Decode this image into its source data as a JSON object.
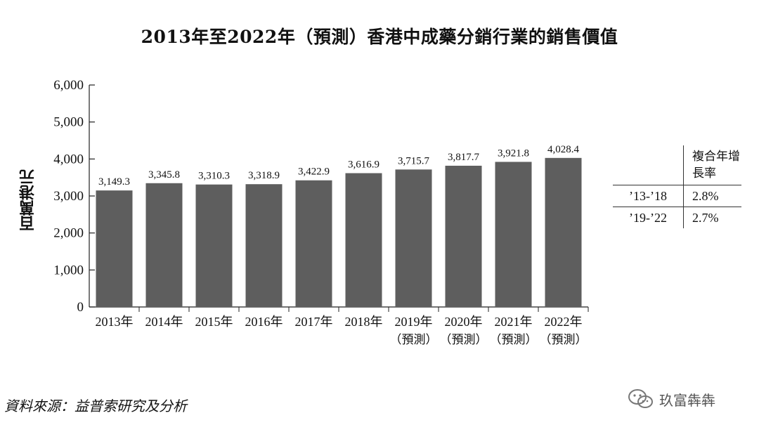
{
  "title": "2013年至2022年（預測）香港中成藥分銷行業的銷售價值",
  "source": "資料來源：益普索研究及分析",
  "watermark": "玖富犇犇",
  "cagr_table": {
    "header": "複合年增長率",
    "rows": [
      {
        "period": "’13-’18",
        "value": "2.8%"
      },
      {
        "period": "’19-’22",
        "value": "2.7%"
      }
    ]
  },
  "chart_data": {
    "type": "bar",
    "title": "2013年至2022年（預測）香港中成藥分銷行業的銷售價值",
    "ylabel": "百萬港元",
    "xlabel": "",
    "ylim": [
      0,
      6000
    ],
    "yticks": [
      "0",
      "1,000",
      "2,000",
      "3,000",
      "4,000",
      "5,000",
      "6,000"
    ],
    "categories": [
      "2013年",
      "2014年",
      "2015年",
      "2016年",
      "2017年",
      "2018年",
      "2019年",
      "2020年",
      "2021年",
      "2022年"
    ],
    "sublabels": [
      "",
      "",
      "",
      "",
      "",
      "",
      "（預測）",
      "（預測）",
      "（預測）",
      "（預測）"
    ],
    "values": [
      3149.3,
      3345.8,
      3310.3,
      3318.9,
      3422.9,
      3616.9,
      3715.7,
      3817.7,
      3921.8,
      4028.4
    ],
    "data_labels": [
      "3,149.3",
      "3,345.8",
      "3,310.3",
      "3,318.9",
      "3,422.9",
      "3,616.9",
      "3,715.7",
      "3,817.7",
      "3,921.8",
      "4,028.4"
    ],
    "bar_color": "#5e5e5e",
    "grid": false,
    "legend": "none"
  }
}
